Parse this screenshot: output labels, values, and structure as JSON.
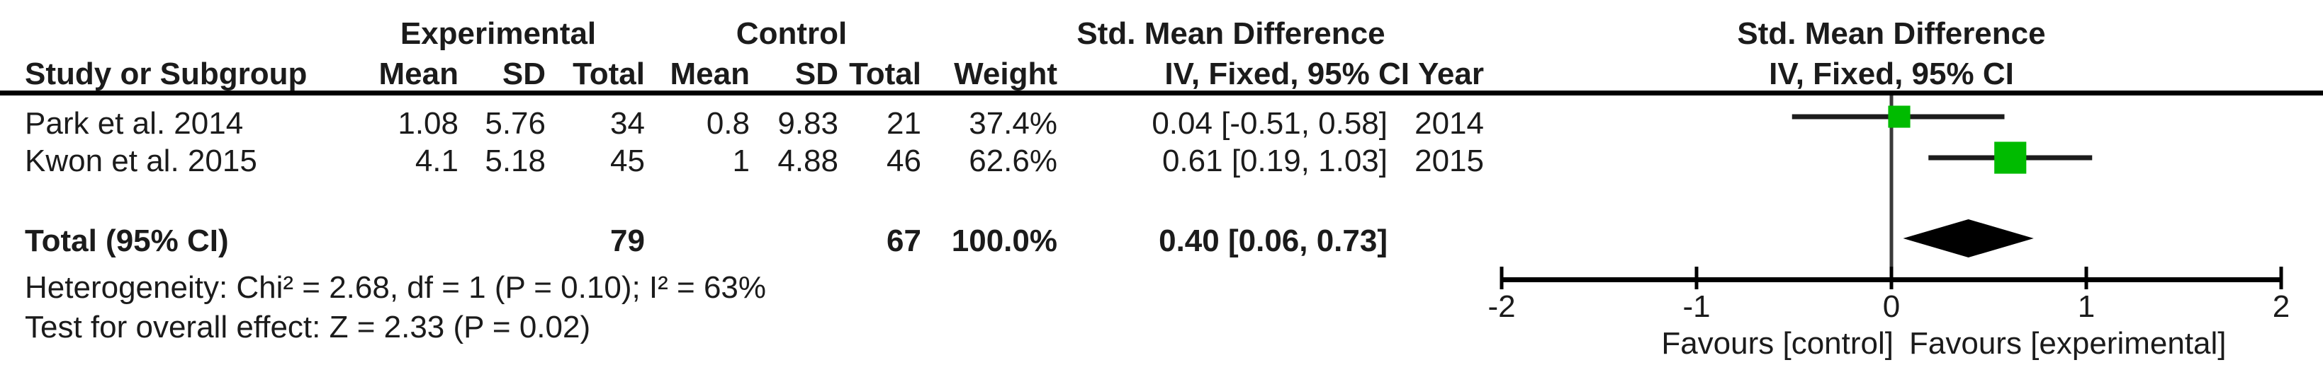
{
  "table": {
    "group_headers": {
      "experimental": "Experimental",
      "control": "Control",
      "smd": "Std. Mean Difference"
    },
    "col_headers": {
      "study": "Study or Subgroup",
      "mean_exp": "Mean",
      "sd_exp": "SD",
      "total_exp": "Total",
      "mean_ctl": "Mean",
      "sd_ctl": "SD",
      "total_ctl": "Total",
      "weight": "Weight",
      "iv": "IV, Fixed, 95% CI",
      "year": "Year"
    },
    "rows": [
      {
        "study": "Park et al. 2014",
        "mean_exp": "1.08",
        "sd_exp": "5.76",
        "total_exp": "34",
        "mean_ctl": "0.8",
        "sd_ctl": "9.83",
        "total_ctl": "21",
        "weight": "37.4%",
        "iv": "0.04 [-0.51, 0.58]",
        "year": "2014"
      },
      {
        "study": "Kwon et al. 2015",
        "mean_exp": "4.1",
        "sd_exp": "5.18",
        "total_exp": "45",
        "mean_ctl": "1",
        "sd_ctl": "4.88",
        "total_ctl": "46",
        "weight": "62.6%",
        "iv": "0.61 [0.19, 1.03]",
        "year": "2015"
      }
    ],
    "total_row": {
      "label": "Total (95% CI)",
      "total_exp": "79",
      "total_ctl": "67",
      "weight": "100.0%",
      "iv": "0.40 [0.06, 0.73]"
    },
    "heterogeneity": "Heterogeneity: Chi² = 2.68, df = 1 (P = 0.10); I² = 63%",
    "overall_effect": "Test for overall effect: Z = 2.33 (P = 0.02)"
  },
  "plot": {
    "header_line1": "Std. Mean Difference",
    "header_line2": "IV, Fixed, 95% CI",
    "favours_left": "Favours [control]",
    "favours_right": "Favours [experimental]"
  },
  "colors": {
    "marker_green": "#00bb00",
    "line_black": "#1c1c1c",
    "zero_line_gray": "#3a3a3a",
    "diamond_black": "#000000"
  },
  "chart_data": {
    "type": "scatter",
    "subtype": "forest-plot",
    "title": "Std. Mean Difference, IV, Fixed, 95% CI",
    "effect_measure": "Std. Mean Difference",
    "model": "IV, Fixed, 95% CI",
    "xlim": [
      -2,
      2
    ],
    "xticks": [
      -2,
      -1,
      0,
      1,
      2
    ],
    "x_axis_left_label": "Favours [control]",
    "x_axis_right_label": "Favours [experimental]",
    "series": [
      {
        "name": "Park et al. 2014",
        "smd": 0.04,
        "ci_low": -0.51,
        "ci_high": 0.58,
        "weight_pct": 37.4,
        "year": 2014,
        "marker": "square",
        "color": "#00bb00"
      },
      {
        "name": "Kwon et al. 2015",
        "smd": 0.61,
        "ci_low": 0.19,
        "ci_high": 1.03,
        "weight_pct": 62.6,
        "year": 2015,
        "marker": "square",
        "color": "#00bb00"
      }
    ],
    "total": {
      "name": "Total (95% CI)",
      "smd": 0.4,
      "ci_low": 0.06,
      "ci_high": 0.73,
      "weight_pct": 100.0,
      "marker": "diamond",
      "color": "#000000"
    },
    "heterogeneity": {
      "chi2": 2.68,
      "df": 1,
      "p": 0.1,
      "i2_pct": 63
    },
    "overall_effect": {
      "z": 2.33,
      "p": 0.02
    }
  }
}
